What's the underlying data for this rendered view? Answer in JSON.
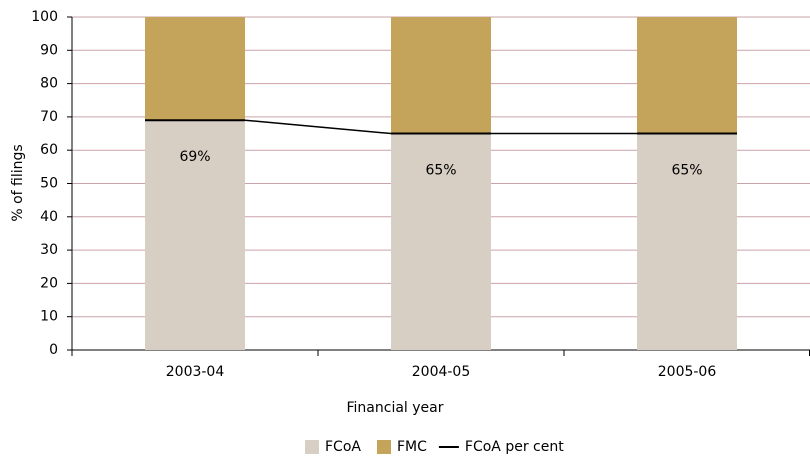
{
  "chart_data": {
    "type": "bar",
    "stacked": true,
    "x_label": "Financial year",
    "y_label": "% of filings",
    "categories": [
      "2003-04",
      "2004-05",
      "2005-06"
    ],
    "series": [
      {
        "name": "FCoA",
        "type": "bar",
        "color": "#d8cfc4",
        "values": [
          69,
          65,
          65
        ],
        "value_labels": [
          "69%",
          "65%",
          "65%"
        ]
      },
      {
        "name": "FMC",
        "type": "bar",
        "color": "#c4a35a",
        "values": [
          31,
          35,
          35
        ]
      },
      {
        "name": "FCoA per cent",
        "type": "line",
        "color": "#000000",
        "values": [
          69,
          65,
          65
        ]
      }
    ],
    "ylim": [
      0,
      100
    ],
    "yticks": [
      0,
      10,
      20,
      30,
      40,
      50,
      60,
      70,
      80,
      90,
      100
    ],
    "grid": true,
    "grid_color": "#c9a3aa",
    "legend": "bottom"
  }
}
